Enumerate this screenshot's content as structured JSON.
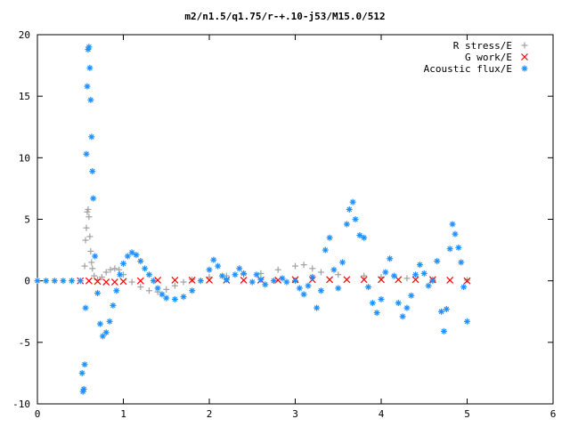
{
  "chart_data": {
    "type": "scatter",
    "title": "m2/n1.5/q1.75/r-+.10-j53/M15.0/512",
    "xlabel": "",
    "ylabel": "",
    "xlim": [
      0,
      6
    ],
    "ylim": [
      -10,
      20
    ],
    "x_ticks": [
      "0",
      "1",
      "2",
      "3",
      "4",
      "5",
      "6"
    ],
    "y_ticks": [
      "-10",
      "-5",
      "0",
      "5",
      "10",
      "15",
      "20"
    ],
    "grid": false,
    "legend_position": "top-right",
    "series": [
      {
        "name": "R stress/E",
        "marker": "+",
        "color": "#a0a0a0",
        "points": [
          [
            0.55,
            1.2
          ],
          [
            0.56,
            3.3
          ],
          [
            0.57,
            4.3
          ],
          [
            0.58,
            5.6
          ],
          [
            0.59,
            5.8
          ],
          [
            0.6,
            5.2
          ],
          [
            0.61,
            3.6
          ],
          [
            0.62,
            2.4
          ],
          [
            0.63,
            1.5
          ],
          [
            0.64,
            1.0
          ],
          [
            0.66,
            0.4
          ],
          [
            0.7,
            0.1
          ],
          [
            0.75,
            0.3
          ],
          [
            0.8,
            0.7
          ],
          [
            0.85,
            0.9
          ],
          [
            0.9,
            1.0
          ],
          [
            0.95,
            0.9
          ],
          [
            1.0,
            0.5
          ],
          [
            1.1,
            -0.1
          ],
          [
            1.2,
            -0.5
          ],
          [
            1.3,
            -0.8
          ],
          [
            1.4,
            -0.9
          ],
          [
            1.5,
            -0.7
          ],
          [
            1.6,
            -0.4
          ],
          [
            1.7,
            -0.1
          ],
          [
            1.8,
            0.1
          ],
          [
            2.0,
            0.3
          ],
          [
            2.2,
            0.4
          ],
          [
            2.4,
            0.5
          ],
          [
            2.6,
            0.6
          ],
          [
            2.8,
            0.9
          ],
          [
            3.0,
            1.2
          ],
          [
            3.1,
            1.3
          ],
          [
            3.2,
            1.0
          ],
          [
            3.3,
            0.7
          ],
          [
            3.5,
            0.5
          ],
          [
            3.8,
            0.4
          ],
          [
            4.0,
            0.3
          ],
          [
            4.3,
            0.2
          ],
          [
            4.6,
            0.1
          ],
          [
            5.0,
            0.05
          ]
        ]
      },
      {
        "name": "G work/E",
        "marker": "x",
        "color": "#ff0000",
        "points": [
          [
            0.5,
            0.0
          ],
          [
            0.6,
            0.0
          ],
          [
            0.7,
            -0.05
          ],
          [
            0.8,
            -0.1
          ],
          [
            0.9,
            -0.1
          ],
          [
            1.0,
            -0.05
          ],
          [
            1.2,
            0.0
          ],
          [
            1.4,
            0.05
          ],
          [
            1.6,
            0.05
          ],
          [
            1.8,
            0.05
          ],
          [
            2.0,
            0.05
          ],
          [
            2.2,
            0.05
          ],
          [
            2.4,
            0.05
          ],
          [
            2.6,
            0.05
          ],
          [
            2.8,
            0.05
          ],
          [
            3.0,
            0.1
          ],
          [
            3.2,
            0.1
          ],
          [
            3.4,
            0.1
          ],
          [
            3.6,
            0.1
          ],
          [
            3.8,
            0.1
          ],
          [
            4.0,
            0.1
          ],
          [
            4.2,
            0.1
          ],
          [
            4.4,
            0.1
          ],
          [
            4.6,
            0.1
          ],
          [
            4.8,
            0.05
          ],
          [
            5.0,
            0.0
          ]
        ]
      },
      {
        "name": "Acoustic flux/E",
        "marker": "*",
        "color": "#1e90ff",
        "points": [
          [
            0.0,
            0.0
          ],
          [
            0.1,
            0.0
          ],
          [
            0.2,
            0.0
          ],
          [
            0.3,
            0.0
          ],
          [
            0.4,
            0.0
          ],
          [
            0.5,
            0.0
          ],
          [
            0.52,
            -7.5
          ],
          [
            0.53,
            -9.0
          ],
          [
            0.54,
            -8.8
          ],
          [
            0.55,
            -6.8
          ],
          [
            0.56,
            -2.2
          ],
          [
            0.57,
            10.3
          ],
          [
            0.58,
            15.8
          ],
          [
            0.59,
            18.8
          ],
          [
            0.6,
            19.0
          ],
          [
            0.61,
            17.3
          ],
          [
            0.62,
            14.7
          ],
          [
            0.63,
            11.7
          ],
          [
            0.64,
            8.9
          ],
          [
            0.65,
            6.7
          ],
          [
            0.67,
            2.0
          ],
          [
            0.7,
            -1.0
          ],
          [
            0.73,
            -3.5
          ],
          [
            0.76,
            -4.5
          ],
          [
            0.8,
            -4.2
          ],
          [
            0.84,
            -3.3
          ],
          [
            0.88,
            -2.0
          ],
          [
            0.92,
            -0.8
          ],
          [
            0.96,
            0.5
          ],
          [
            1.0,
            1.4
          ],
          [
            1.05,
            2.0
          ],
          [
            1.1,
            2.3
          ],
          [
            1.15,
            2.1
          ],
          [
            1.2,
            1.6
          ],
          [
            1.25,
            1.0
          ],
          [
            1.3,
            0.5
          ],
          [
            1.35,
            0.0
          ],
          [
            1.4,
            -0.6
          ],
          [
            1.45,
            -1.1
          ],
          [
            1.5,
            -1.4
          ],
          [
            1.6,
            -1.5
          ],
          [
            1.7,
            -1.3
          ],
          [
            1.8,
            -0.8
          ],
          [
            1.9,
            0.0
          ],
          [
            2.0,
            0.9
          ],
          [
            2.05,
            1.7
          ],
          [
            2.1,
            1.2
          ],
          [
            2.15,
            0.4
          ],
          [
            2.2,
            0.1
          ],
          [
            2.3,
            0.5
          ],
          [
            2.35,
            1.0
          ],
          [
            2.4,
            0.6
          ],
          [
            2.5,
            -0.1
          ],
          [
            2.55,
            0.5
          ],
          [
            2.6,
            0.1
          ],
          [
            2.65,
            -0.3
          ],
          [
            2.75,
            0.0
          ],
          [
            2.85,
            0.2
          ],
          [
            2.9,
            -0.1
          ],
          [
            3.0,
            0.0
          ],
          [
            3.05,
            -0.6
          ],
          [
            3.1,
            -1.1
          ],
          [
            3.15,
            -0.4
          ],
          [
            3.2,
            0.3
          ],
          [
            3.25,
            -2.2
          ],
          [
            3.3,
            -0.8
          ],
          [
            3.35,
            2.5
          ],
          [
            3.4,
            3.5
          ],
          [
            3.45,
            0.9
          ],
          [
            3.5,
            -0.6
          ],
          [
            3.55,
            1.5
          ],
          [
            3.6,
            4.6
          ],
          [
            3.63,
            5.8
          ],
          [
            3.67,
            6.4
          ],
          [
            3.7,
            5.0
          ],
          [
            3.75,
            3.7
          ],
          [
            3.8,
            3.5
          ],
          [
            3.85,
            -0.5
          ],
          [
            3.9,
            -1.8
          ],
          [
            3.95,
            -2.6
          ],
          [
            4.0,
            -1.5
          ],
          [
            4.05,
            0.7
          ],
          [
            4.1,
            1.8
          ],
          [
            4.15,
            0.4
          ],
          [
            4.2,
            -1.8
          ],
          [
            4.25,
            -2.9
          ],
          [
            4.3,
            -2.2
          ],
          [
            4.35,
            -1.2
          ],
          [
            4.4,
            0.5
          ],
          [
            4.45,
            1.3
          ],
          [
            4.5,
            0.6
          ],
          [
            4.55,
            -0.4
          ],
          [
            4.6,
            0.0
          ],
          [
            4.65,
            1.6
          ],
          [
            4.7,
            -2.5
          ],
          [
            4.73,
            -4.1
          ],
          [
            4.76,
            -2.3
          ],
          [
            4.8,
            2.6
          ],
          [
            4.83,
            4.6
          ],
          [
            4.86,
            3.8
          ],
          [
            4.9,
            2.7
          ],
          [
            4.93,
            1.5
          ],
          [
            4.96,
            -0.5
          ],
          [
            5.0,
            -3.3
          ]
        ]
      }
    ]
  }
}
